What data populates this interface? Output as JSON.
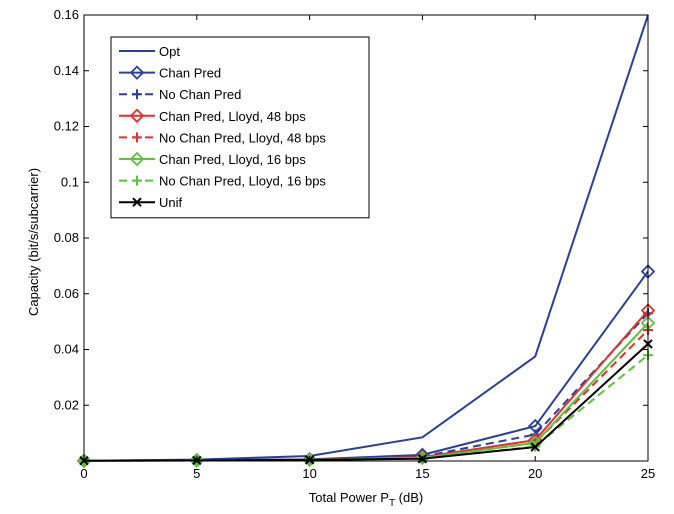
{
  "chart_data": {
    "type": "line",
    "xlabel": "Total Power P",
    "xlabel_sub": "T",
    "xlabel_unit": " (dB)",
    "ylabel": "Capacity (bit/s/subcarrier)",
    "xlim": [
      0,
      25
    ],
    "ylim": [
      0,
      0.16
    ],
    "x_ticks": [
      0,
      5,
      10,
      15,
      20,
      25
    ],
    "y_ticks": [
      0.02,
      0.04,
      0.06,
      0.08,
      0.1,
      0.12,
      0.14,
      0.16
    ],
    "x_tick_labels": [
      "0",
      "5",
      "10",
      "15",
      "20",
      "25"
    ],
    "y_tick_labels": [
      "0.02",
      "0.04",
      "0.06",
      "0.08",
      "0.1",
      "0.12",
      "0.14",
      "0.16"
    ],
    "grid": false,
    "legend_position": "top-left",
    "x": [
      0,
      5,
      10,
      15,
      20,
      25
    ],
    "series": [
      {
        "name": "Opt",
        "color": "#2a3f9d",
        "dash": "solid",
        "marker": "none",
        "values": [
          0.0001,
          0.0005,
          0.0018,
          0.0085,
          0.0375,
          0.16
        ]
      },
      {
        "name": "Chan Pred",
        "color": "#2a3f9d",
        "dash": "solid",
        "marker": "diamond",
        "values": [
          0.0001,
          0.0003,
          0.0006,
          0.0022,
          0.0125,
          0.068
        ]
      },
      {
        "name": "No Chan Pred",
        "color": "#2a3f9d",
        "dash": "dashed",
        "marker": "plus",
        "values": [
          0.0001,
          0.0003,
          0.0005,
          0.0016,
          0.0095,
          0.053
        ]
      },
      {
        "name": "Chan Pred, Lloyd, 48 bps",
        "color": "#e0312d",
        "dash": "solid",
        "marker": "diamond",
        "values": [
          0.0001,
          0.0002,
          0.0005,
          0.0014,
          0.0075,
          0.054
        ]
      },
      {
        "name": "No Chan Pred, Lloyd, 48 bps",
        "color": "#e0312d",
        "dash": "dashed",
        "marker": "plus",
        "values": [
          0.0001,
          0.0002,
          0.0004,
          0.0012,
          0.0065,
          0.047
        ]
      },
      {
        "name": "Chan Pred, Lloyd, 16 bps",
        "color": "#5cc23b",
        "dash": "solid",
        "marker": "diamond",
        "values": [
          0.0001,
          0.0002,
          0.0004,
          0.0011,
          0.0065,
          0.0495
        ]
      },
      {
        "name": "No Chan Pred, Lloyd, 16 bps",
        "color": "#5cc23b",
        "dash": "dashed",
        "marker": "plus",
        "values": [
          0.0001,
          0.0002,
          0.0004,
          0.0009,
          0.0052,
          0.038
        ]
      },
      {
        "name": "Unif",
        "color": "#000000",
        "dash": "solid",
        "marker": "x",
        "values": [
          0.0001,
          0.0002,
          0.0004,
          0.0008,
          0.005,
          0.042
        ]
      }
    ]
  }
}
